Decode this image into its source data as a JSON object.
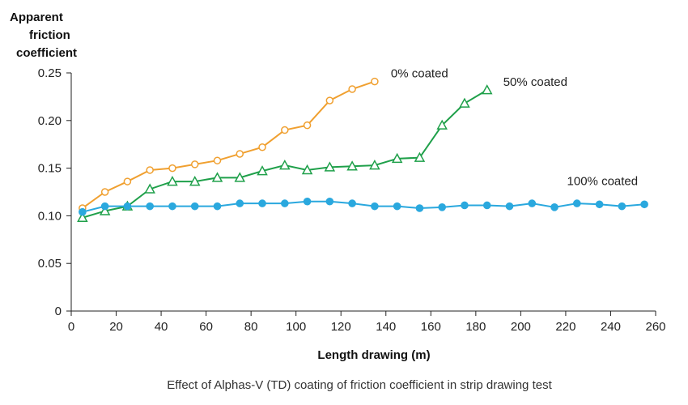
{
  "chart_data": {
    "type": "line",
    "title": "",
    "caption": "Effect of Alphas-V (TD) coating of friction coefficient in strip drawing test",
    "ylabel_lines": [
      "Apparent",
      "friction",
      "coefficient"
    ],
    "xlabel": "Length drawing (m)",
    "xlim": [
      0,
      260
    ],
    "ylim": [
      0,
      0.25
    ],
    "x_ticks": [
      "0",
      "20",
      "40",
      "60",
      "80",
      "100",
      "120",
      "140",
      "160",
      "180",
      "200",
      "220",
      "240",
      "260"
    ],
    "y_ticks": [
      "0",
      "0.05",
      "0.10",
      "0.15",
      "0.20",
      "0.25"
    ],
    "grid": false,
    "series": [
      {
        "name": "0% coated",
        "color": "#f0a030",
        "marker": "open-circle",
        "x": [
          5,
          15,
          25,
          35,
          45,
          55,
          65,
          75,
          85,
          95,
          105,
          115,
          125,
          135
        ],
        "y": [
          0.108,
          0.125,
          0.136,
          0.148,
          0.15,
          0.154,
          0.158,
          0.165,
          0.172,
          0.19,
          0.195,
          0.221,
          0.233,
          0.241
        ]
      },
      {
        "name": "50% coated",
        "color": "#1fa04a",
        "marker": "open-triangle",
        "x": [
          5,
          15,
          25,
          35,
          45,
          55,
          65,
          75,
          85,
          95,
          105,
          115,
          125,
          135,
          145,
          155,
          165,
          175,
          185
        ],
        "y": [
          0.098,
          0.105,
          0.11,
          0.128,
          0.136,
          0.136,
          0.14,
          0.14,
          0.147,
          0.153,
          0.148,
          0.151,
          0.152,
          0.153,
          0.16,
          0.161,
          0.195,
          0.218,
          0.232
        ]
      },
      {
        "name": "100% coated",
        "color": "#2aa8de",
        "marker": "filled-circle",
        "x": [
          5,
          15,
          25,
          35,
          45,
          55,
          65,
          75,
          85,
          95,
          105,
          115,
          125,
          135,
          145,
          155,
          165,
          175,
          185,
          195,
          205,
          215,
          225,
          235,
          245,
          255
        ],
        "y": [
          0.104,
          0.11,
          0.11,
          0.11,
          0.11,
          0.11,
          0.11,
          0.113,
          0.113,
          0.113,
          0.115,
          0.115,
          0.113,
          0.11,
          0.11,
          0.108,
          0.109,
          0.111,
          0.111,
          0.11,
          0.113,
          0.109,
          0.113,
          0.112,
          0.11,
          0.112
        ]
      }
    ]
  }
}
